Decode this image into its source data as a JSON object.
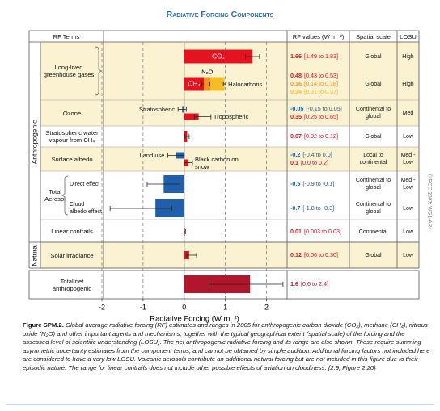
{
  "title": "Radiative Forcing Components",
  "headers": {
    "terms": "RF Terms",
    "values": "RF values (W m⁻²)",
    "spatial": "Spatial scale",
    "losu": "LOSU"
  },
  "chart_data": {
    "type": "bar",
    "orientation": "horizontal",
    "xlabel": "Radiative Forcing (W m⁻²)",
    "xlim": [
      -2,
      2.5
    ],
    "xticks": [
      -2,
      -1,
      0,
      1,
      2
    ],
    "grid": true,
    "groups": [
      {
        "name": "Anthropogenic",
        "rows": [
          {
            "term": "Long-lived greenhouse gases",
            "lines": [
              {
                "spatial": "Global",
                "losu": "High",
                "bars": [
                  {
                    "name": "CO₂",
                    "color": "#e3141f",
                    "value": 1.66,
                    "range": [
                      1.49,
                      1.83
                    ],
                    "range_label": "[1.49 to 1.83]"
                  }
                ]
              },
              {
                "spatial": "Global",
                "losu": "High",
                "stacked": true,
                "bars": [
                  {
                    "name": "CH₄",
                    "color": "#e3141f",
                    "value": 0.48,
                    "range": [
                      0.43,
                      0.53
                    ],
                    "range_label": "[0.43 to 0.53]"
                  },
                  {
                    "name": "N₂O",
                    "color": "#f39322",
                    "value": 0.16,
                    "range": [
                      0.14,
                      0.18
                    ],
                    "range_label": "[0.14 to 0.18]"
                  },
                  {
                    "name": "Halocarbons",
                    "color": "#f5bd24",
                    "value": 0.34,
                    "range": [
                      0.31,
                      0.37
                    ],
                    "range_label": "[0.31 to 0.37]"
                  }
                ]
              }
            ]
          },
          {
            "term": "Ozone",
            "lines": [
              {
                "spatial": "Continental to global",
                "losu": "Med",
                "bars": [
                  {
                    "name": "Stratospheric",
                    "color": "#1f5fae",
                    "value": -0.05,
                    "range": [
                      -0.15,
                      0.05
                    ],
                    "range_label": "[-0.15 to 0.05]"
                  },
                  {
                    "name": "Tropospheric",
                    "color": "#e3141f",
                    "value": 0.35,
                    "range": [
                      0.25,
                      0.65
                    ],
                    "range_label": "[0.25 to 0.65]"
                  }
                ]
              }
            ]
          },
          {
            "term": "Stratospheric water vapour from CH₄",
            "lines": [
              {
                "spatial": "Global",
                "losu": "Low",
                "bars": [
                  {
                    "color": "#e3141f",
                    "value": 0.07,
                    "range": [
                      0.02,
                      0.12
                    ],
                    "range_label": "[0.02 to 0.12]"
                  }
                ]
              }
            ]
          },
          {
            "term": "Surface albedo",
            "lines": [
              {
                "spatial": "Local to continental",
                "losu": "Med - Low",
                "bars": [
                  {
                    "name": "Land use",
                    "color": "#1f5fae",
                    "value": -0.2,
                    "range": [
                      -0.4,
                      0
                    ],
                    "range_label": "[-0.4 to 0.0]"
                  },
                  {
                    "name": "Black carbon on snow",
                    "color": "#e3141f",
                    "value": 0.1,
                    "range": [
                      0,
                      0.2
                    ],
                    "range_label": "[0.0 to 0.2]"
                  }
                ]
              }
            ]
          },
          {
            "term": "Total Aerosol",
            "lines": [
              {
                "label": "Direct effect",
                "spatial": "Continental to global",
                "losu": "Med - Low",
                "bars": [
                  {
                    "color": "#1f5fae",
                    "value": -0.5,
                    "range": [
                      -0.9,
                      -0.1
                    ],
                    "range_label": "[-0.9 to -0.1]"
                  }
                ]
              },
              {
                "label": "Cloud albedo effect",
                "spatial": "Continental to global",
                "losu": "Low",
                "bars": [
                  {
                    "color": "#1f5fae",
                    "value": -0.7,
                    "range": [
                      -1.8,
                      -0.3
                    ],
                    "range_label": "[-1.8 to -0.3]"
                  }
                ]
              }
            ]
          },
          {
            "term": "Linear contrails",
            "lines": [
              {
                "spatial": "Continental",
                "losu": "Low",
                "bars": [
                  {
                    "color": "#e3141f",
                    "value": 0.01,
                    "range": [
                      0.003,
                      0.03
                    ],
                    "range_label": "[0.003 to 0.03]"
                  }
                ]
              }
            ]
          }
        ]
      },
      {
        "name": "Natural",
        "rows": [
          {
            "term": "Solar irradiance",
            "lines": [
              {
                "spatial": "Global",
                "losu": "Low",
                "bars": [
                  {
                    "color": "#e3141f",
                    "value": 0.12,
                    "range": [
                      0.06,
                      0.3
                    ],
                    "range_label": "[0.06 to 0.30]"
                  }
                ]
              }
            ]
          }
        ]
      }
    ],
    "total": {
      "term": "Total net anthropogenic",
      "lines": [
        {
          "bars": [
            {
              "color": "#b3152c",
              "value": 1.6,
              "range": [
                0.6,
                2.4
              ],
              "range_label": "[0.6 to 2.4]"
            }
          ]
        }
      ]
    }
  },
  "credit": "©IPCC 2007: WG1-AR4",
  "caption": {
    "label": "Figure SPM.2.",
    "text": "Global average radiative forcing (RF) estimates and ranges in 2005 for anthropogenic carbon dioxide (CO₂), methane (CH₄), nitrous oxide (N₂O) and other important agents and mechanisms, together with the typical geographical extent (spatial scale) of the forcing and the assessed level of scientific understanding (LOSU). The net anthropogenic radiative forcing and its range are also shown. These require summing asymmetric uncertainty estimates from the component terms, and cannot be obtained by simple addition. Additional forcing factors not included here are considered to have a very low LOSU. Volcanic aerosols contribute an additional natural forcing but are not included in this figure due to their episodic nature. The range for linear contrails does not include other possible effects of aviation on cloudiness. {2.9, Figure 2.20}"
  }
}
